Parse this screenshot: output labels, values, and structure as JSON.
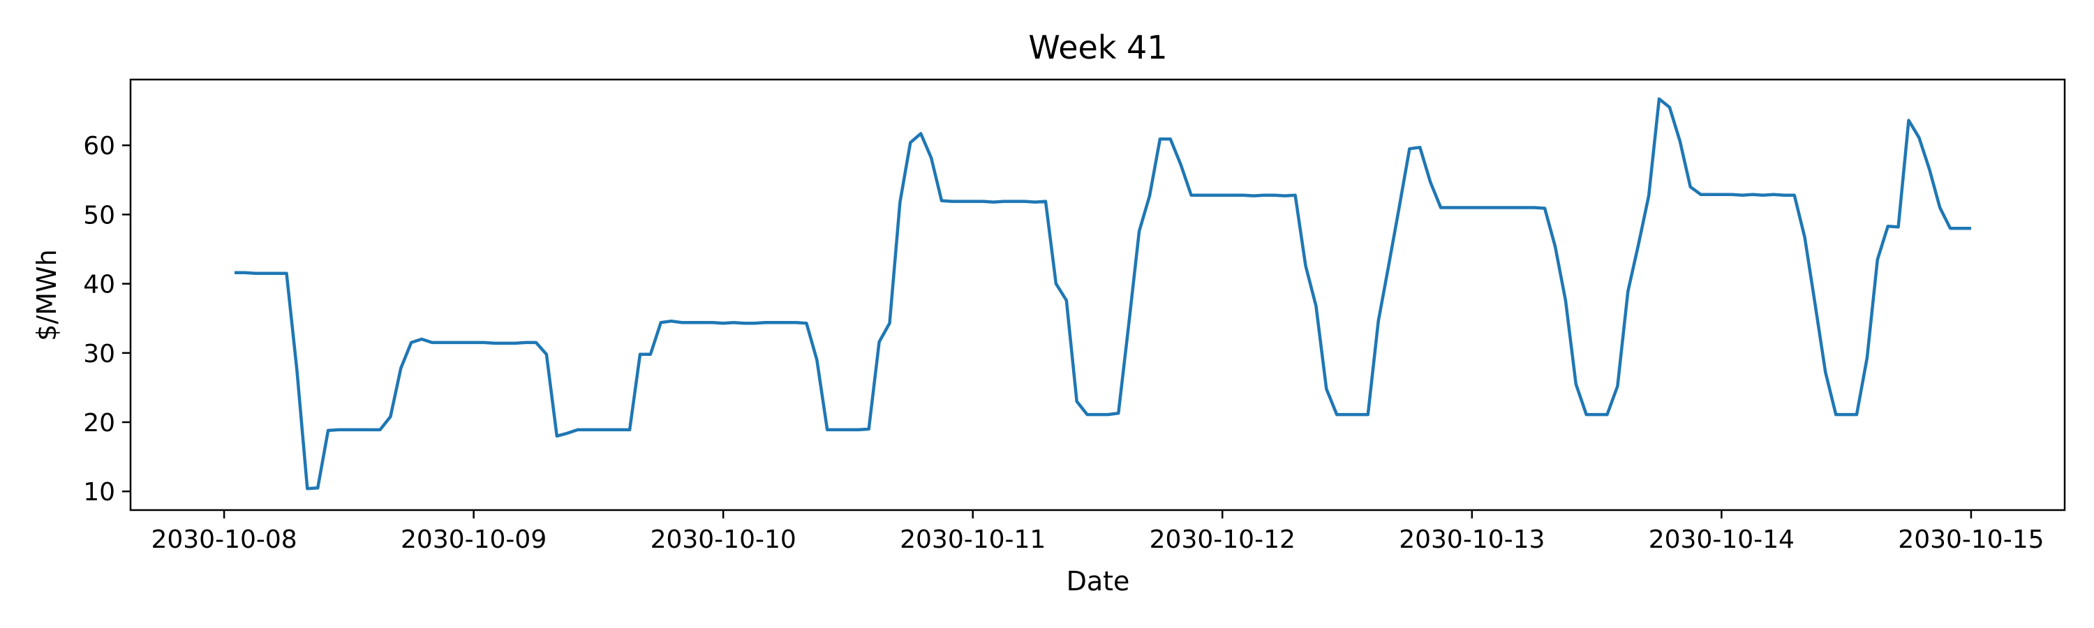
{
  "chart_data": {
    "type": "line",
    "title": "Week 41",
    "xlabel": "Date",
    "ylabel": "$/MWh",
    "grid": false,
    "legend": "none",
    "x_ticks": [
      "2030-10-08",
      "2030-10-09",
      "2030-10-10",
      "2030-10-11",
      "2030-10-12",
      "2030-10-13",
      "2030-10-14",
      "2030-10-15"
    ],
    "y_ticks": [
      10,
      20,
      30,
      40,
      50,
      60
    ],
    "xlim": [
      "2030-10-07 15:00",
      "2030-10-15 09:00"
    ],
    "ylim": [
      7.3,
      69.5
    ],
    "color": "#1f77b4",
    "series": [
      {
        "x": [
          "2030-10-08 01:00",
          "2030-10-08 02:00",
          "2030-10-08 03:00",
          "2030-10-08 04:00",
          "2030-10-08 05:00",
          "2030-10-08 06:00",
          "2030-10-08 07:00",
          "2030-10-08 08:00",
          "2030-10-08 09:00",
          "2030-10-08 10:00",
          "2030-10-08 11:00",
          "2030-10-08 12:00",
          "2030-10-08 13:00",
          "2030-10-08 14:00",
          "2030-10-08 15:00",
          "2030-10-08 16:00",
          "2030-10-08 17:00",
          "2030-10-08 18:00",
          "2030-10-08 19:00",
          "2030-10-08 20:00",
          "2030-10-08 21:00",
          "2030-10-08 22:00",
          "2030-10-08 23:00",
          "2030-10-09 00:00",
          "2030-10-09 01:00",
          "2030-10-09 02:00",
          "2030-10-09 03:00",
          "2030-10-09 04:00",
          "2030-10-09 05:00",
          "2030-10-09 06:00",
          "2030-10-09 07:00",
          "2030-10-09 08:00",
          "2030-10-09 09:00",
          "2030-10-09 10:00",
          "2030-10-09 11:00",
          "2030-10-09 12:00",
          "2030-10-09 13:00",
          "2030-10-09 14:00",
          "2030-10-09 15:00",
          "2030-10-09 16:00",
          "2030-10-09 17:00",
          "2030-10-09 18:00",
          "2030-10-09 19:00",
          "2030-10-09 20:00",
          "2030-10-09 21:00",
          "2030-10-09 22:00",
          "2030-10-09 23:00",
          "2030-10-10 00:00",
          "2030-10-10 01:00",
          "2030-10-10 02:00",
          "2030-10-10 03:00",
          "2030-10-10 04:00",
          "2030-10-10 05:00",
          "2030-10-10 06:00",
          "2030-10-10 07:00",
          "2030-10-10 08:00",
          "2030-10-10 09:00",
          "2030-10-10 10:00",
          "2030-10-10 11:00",
          "2030-10-10 12:00",
          "2030-10-10 13:00",
          "2030-10-10 14:00",
          "2030-10-10 15:00",
          "2030-10-10 16:00",
          "2030-10-10 17:00",
          "2030-10-10 18:00",
          "2030-10-10 19:00",
          "2030-10-10 20:00",
          "2030-10-10 21:00",
          "2030-10-10 22:00",
          "2030-10-10 23:00",
          "2030-10-11 00:00",
          "2030-10-11 01:00",
          "2030-10-11 02:00",
          "2030-10-11 03:00",
          "2030-10-11 04:00",
          "2030-10-11 05:00",
          "2030-10-11 06:00",
          "2030-10-11 07:00",
          "2030-10-11 08:00",
          "2030-10-11 09:00",
          "2030-10-11 10:00",
          "2030-10-11 11:00",
          "2030-10-11 12:00",
          "2030-10-11 13:00",
          "2030-10-11 14:00",
          "2030-10-11 15:00",
          "2030-10-11 16:00",
          "2030-10-11 17:00",
          "2030-10-11 18:00",
          "2030-10-11 19:00",
          "2030-10-11 20:00",
          "2030-10-11 21:00",
          "2030-10-11 22:00",
          "2030-10-11 23:00",
          "2030-10-12 00:00",
          "2030-10-12 01:00",
          "2030-10-12 02:00",
          "2030-10-12 03:00",
          "2030-10-12 04:00",
          "2030-10-12 05:00",
          "2030-10-12 06:00",
          "2030-10-12 07:00",
          "2030-10-12 08:00",
          "2030-10-12 09:00",
          "2030-10-12 10:00",
          "2030-10-12 11:00",
          "2030-10-12 12:00",
          "2030-10-12 13:00",
          "2030-10-12 14:00",
          "2030-10-12 15:00",
          "2030-10-12 16:00",
          "2030-10-12 17:00",
          "2030-10-12 18:00",
          "2030-10-12 19:00",
          "2030-10-12 20:00",
          "2030-10-12 21:00",
          "2030-10-12 22:00",
          "2030-10-12 23:00",
          "2030-10-13 00:00",
          "2030-10-13 01:00",
          "2030-10-13 02:00",
          "2030-10-13 03:00",
          "2030-10-13 04:00",
          "2030-10-13 05:00",
          "2030-10-13 06:00",
          "2030-10-13 07:00",
          "2030-10-13 08:00",
          "2030-10-13 09:00",
          "2030-10-13 10:00",
          "2030-10-13 11:00",
          "2030-10-13 12:00",
          "2030-10-13 13:00",
          "2030-10-13 14:00",
          "2030-10-13 15:00",
          "2030-10-13 16:00",
          "2030-10-13 17:00",
          "2030-10-13 18:00",
          "2030-10-13 19:00",
          "2030-10-13 20:00",
          "2030-10-13 21:00",
          "2030-10-13 22:00",
          "2030-10-13 23:00",
          "2030-10-14 00:00",
          "2030-10-14 01:00",
          "2030-10-14 02:00",
          "2030-10-14 03:00",
          "2030-10-14 04:00",
          "2030-10-14 05:00",
          "2030-10-14 06:00",
          "2030-10-14 07:00",
          "2030-10-14 08:00",
          "2030-10-14 09:00",
          "2030-10-14 10:00",
          "2030-10-14 11:00",
          "2030-10-14 12:00",
          "2030-10-14 13:00",
          "2030-10-14 14:00",
          "2030-10-14 15:00",
          "2030-10-14 16:00",
          "2030-10-14 17:00",
          "2030-10-14 18:00",
          "2030-10-14 19:00",
          "2030-10-14 20:00",
          "2030-10-14 21:00",
          "2030-10-14 22:00",
          "2030-10-14 23:00",
          "2030-10-15 00:00"
        ],
        "values": [
          41.6,
          41.6,
          41.5,
          41.5,
          41.5,
          41.5,
          27.5,
          10.4,
          10.5,
          18.8,
          18.9,
          18.9,
          18.9,
          18.9,
          18.9,
          20.8,
          27.8,
          31.5,
          32.0,
          31.5,
          31.5,
          31.5,
          31.5,
          31.5,
          31.5,
          31.4,
          31.4,
          31.4,
          31.5,
          31.5,
          29.8,
          18.0,
          18.4,
          18.9,
          18.9,
          18.9,
          18.9,
          18.9,
          18.9,
          29.8,
          29.8,
          34.4,
          34.6,
          34.4,
          34.4,
          34.4,
          34.4,
          34.3,
          34.4,
          34.3,
          34.3,
          34.4,
          34.4,
          34.4,
          34.4,
          34.3,
          29.0,
          18.9,
          18.9,
          18.9,
          18.9,
          19.0,
          31.6,
          34.3,
          51.8,
          60.4,
          61.7,
          58.2,
          52.0,
          51.9,
          51.9,
          51.9,
          51.9,
          51.8,
          51.9,
          51.9,
          51.9,
          51.8,
          51.9,
          40.0,
          37.6,
          23.0,
          21.1,
          21.1,
          21.1,
          21.3,
          34.2,
          47.6,
          52.7,
          60.9,
          60.9,
          57.2,
          52.8,
          52.8,
          52.8,
          52.8,
          52.8,
          52.8,
          52.7,
          52.8,
          52.8,
          52.7,
          52.8,
          42.6,
          36.8,
          24.8,
          21.1,
          21.1,
          21.1,
          21.1,
          34.6,
          42.7,
          51.0,
          59.5,
          59.7,
          54.7,
          51.0,
          51.0,
          51.0,
          51.0,
          51.0,
          51.0,
          51.0,
          51.0,
          51.0,
          51.0,
          50.9,
          45.4,
          37.6,
          25.5,
          21.1,
          21.1,
          21.1,
          25.2,
          38.9,
          45.6,
          52.7,
          66.7,
          65.5,
          60.6,
          54.0,
          52.9,
          52.9,
          52.9,
          52.9,
          52.8,
          52.9,
          52.8,
          52.9,
          52.8,
          52.8,
          46.7,
          37.0,
          27.2,
          21.1,
          21.1,
          21.1,
          29.3,
          43.5,
          48.3,
          48.2,
          63.6,
          61.1,
          56.5,
          51.0,
          48.0,
          48.0,
          48.0
        ]
      }
    ]
  }
}
